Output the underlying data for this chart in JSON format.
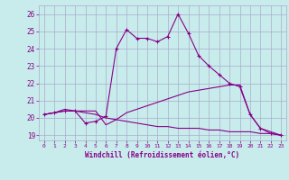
{
  "xlabel": "Windchill (Refroidissement éolien,°C)",
  "xlim": [
    -0.5,
    23.5
  ],
  "ylim": [
    18.7,
    26.5
  ],
  "yticks": [
    19,
    20,
    21,
    22,
    23,
    24,
    25,
    26
  ],
  "xticks": [
    0,
    1,
    2,
    3,
    4,
    5,
    6,
    7,
    8,
    9,
    10,
    11,
    12,
    13,
    14,
    15,
    16,
    17,
    18,
    19,
    20,
    21,
    22,
    23
  ],
  "background_color": "#c8ecec",
  "grid_color": "#aaaacc",
  "line_color": "#880088",
  "series": [
    {
      "x": [
        0,
        1,
        2,
        3,
        4,
        5,
        6,
        7,
        8,
        9,
        10,
        11,
        12,
        13,
        14,
        15,
        16,
        17,
        18,
        19,
        20,
        21,
        22,
        23
      ],
      "y": [
        20.2,
        20.3,
        20.4,
        20.4,
        19.7,
        19.8,
        20.1,
        24.0,
        25.1,
        24.6,
        24.6,
        24.4,
        24.7,
        26.0,
        24.9,
        23.6,
        23.0,
        22.5,
        22.0,
        21.8,
        20.2,
        19.4,
        19.1,
        19.0
      ],
      "marker": "+"
    },
    {
      "x": [
        0,
        1,
        2,
        3,
        4,
        5,
        6,
        7,
        8,
        9,
        10,
        11,
        12,
        13,
        14,
        15,
        16,
        17,
        18,
        19,
        20,
        21,
        22,
        23
      ],
      "y": [
        20.2,
        20.3,
        20.5,
        20.4,
        20.4,
        20.4,
        19.6,
        19.9,
        20.3,
        20.5,
        20.7,
        20.9,
        21.1,
        21.3,
        21.5,
        21.6,
        21.7,
        21.8,
        21.9,
        21.9,
        20.2,
        19.4,
        19.2,
        19.0
      ],
      "marker": null
    },
    {
      "x": [
        0,
        1,
        2,
        3,
        4,
        5,
        6,
        7,
        8,
        9,
        10,
        11,
        12,
        13,
        14,
        15,
        16,
        17,
        18,
        19,
        20,
        21,
        22,
        23
      ],
      "y": [
        20.2,
        20.3,
        20.4,
        20.4,
        20.3,
        20.2,
        20.0,
        19.9,
        19.8,
        19.7,
        19.6,
        19.5,
        19.5,
        19.4,
        19.4,
        19.4,
        19.3,
        19.3,
        19.2,
        19.2,
        19.2,
        19.1,
        19.1,
        19.0
      ],
      "marker": null
    }
  ]
}
